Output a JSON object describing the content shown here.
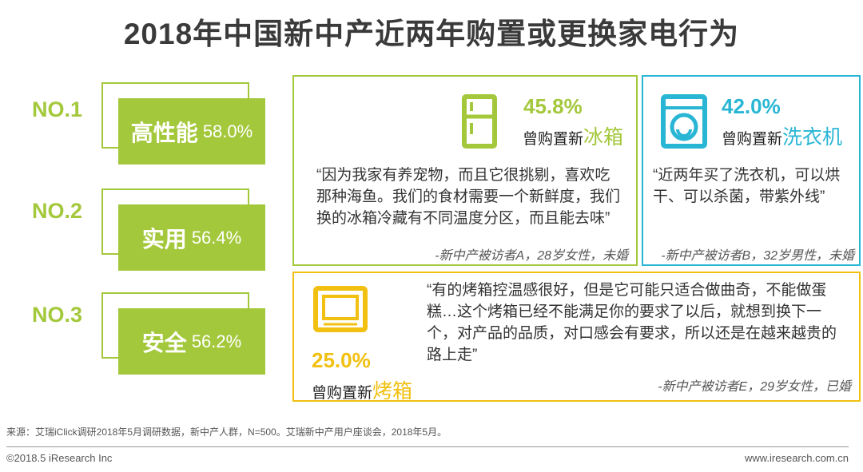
{
  "title": "2018年中国新中产近两年购置或更换家电行为",
  "ranks": [
    {
      "label": "NO.1",
      "name": "高性能",
      "pct": "58.0%"
    },
    {
      "label": "NO.2",
      "name": "实用",
      "pct": "56.4%"
    },
    {
      "label": "NO.3",
      "name": "安全",
      "pct": "56.2%"
    }
  ],
  "cards": [
    {
      "pct": "45.8%",
      "prefix": "曾购置新",
      "item": "冰箱",
      "icon": "refrigerator-icon",
      "quote": "“因为我家有养宠物，而且它很挑剔，喜欢吃那种海鱼。我们的食材需要一个新鲜度，我们换的冰箱冷藏有不同温度分区，而且能去味”",
      "source": "-新中产被访者A，28岁女性，未婚"
    },
    {
      "pct": "42.0%",
      "prefix": "曾购置新",
      "item": "洗衣机",
      "icon": "washing-machine-icon",
      "quote": "“近两年买了洗衣机，可以烘干、可以杀菌，带紫外线”",
      "source": "-新中产被访者B，32岁男性，未婚"
    },
    {
      "pct": "25.0%",
      "prefix": "曾购置新",
      "item": "烤箱",
      "icon": "oven-icon",
      "quote": "“有的烤箱控温感很好，但是它可能只适合做曲奇，不能做蛋糕…这个烤箱已经不能满足你的要求了以后，就想到换下一个，对产品的品质，对口感会有要求，所以还是在越来越贵的路上走”",
      "source": "-新中产被访者E，29岁女性，已婚"
    }
  ],
  "colors": {
    "green": "#a4c83c",
    "cyan": "#29b6d4",
    "yellow": "#f2c010"
  },
  "footnote": "来源：艾瑞iClick调研2018年5月调研数据，新中产人群，N=500。艾瑞新中产用户座谈会，2018年5月。",
  "copyright": "©2018.5 iResearch Inc",
  "website": "www.iresearch.com.cn"
}
